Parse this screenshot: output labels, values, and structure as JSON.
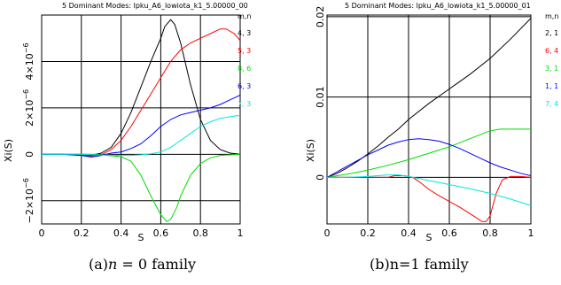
{
  "chart_data": [
    {
      "type": "line",
      "title": "5 Dominant Modes: lpku_A6_lowiota_k1_5.00000_00",
      "xlabel": "S",
      "ylabel": "Xi(S)",
      "xlim": [
        0,
        1
      ],
      "ylim": [
        -3e-06,
        6e-06
      ],
      "x_ticks": [
        0,
        0.2,
        0.4,
        0.6,
        0.8,
        1
      ],
      "x_tick_labels": [
        "0",
        "0.2",
        "0.4",
        "0.6",
        "0.8",
        "1"
      ],
      "y_ticks": [
        -2e-06,
        0,
        2e-06,
        4e-06
      ],
      "grid": true,
      "legend_title": "m,n",
      "legend_position": "right",
      "caption_prefix": "(a)",
      "caption_var": "n",
      "caption_rest": " = 0 family",
      "series": [
        {
          "name": "4, 3",
          "color": "#000000",
          "x": [
            0,
            0.1,
            0.2,
            0.25,
            0.3,
            0.35,
            0.4,
            0.45,
            0.5,
            0.55,
            0.6,
            0.62,
            0.65,
            0.67,
            0.7,
            0.75,
            0.8,
            0.85,
            0.9,
            0.95,
            1.0
          ],
          "y": [
            0,
            0,
            -3e-08,
            -5e-08,
            5e-08,
            3e-07,
            9e-07,
            1.8e-06,
            2.9e-06,
            4e-06,
            5e-06,
            5.5e-06,
            5.8e-06,
            5.6e-06,
            4.8e-06,
            3e-06,
            1.5e-06,
            6e-07,
            2e-07,
            5e-08,
            0
          ]
        },
        {
          "name": "5, 3",
          "color": "#ff0000",
          "x": [
            0,
            0.1,
            0.2,
            0.25,
            0.3,
            0.35,
            0.4,
            0.45,
            0.5,
            0.55,
            0.6,
            0.65,
            0.7,
            0.75,
            0.8,
            0.85,
            0.9,
            0.93,
            0.97,
            1.0
          ],
          "y": [
            0,
            0,
            -5e-08,
            -8e-08,
            -2e-08,
            2e-07,
            6e-07,
            1.2e-06,
            1.9e-06,
            2.6e-06,
            3.3e-06,
            4e-06,
            4.5e-06,
            4.8e-06,
            5e-06,
            5.2e-06,
            5.4e-06,
            5.4e-06,
            5.2e-06,
            4.9e-06
          ]
        },
        {
          "name": "8, 6",
          "color": "#00dd00",
          "x": [
            0,
            0.1,
            0.2,
            0.3,
            0.4,
            0.45,
            0.5,
            0.55,
            0.6,
            0.63,
            0.65,
            0.68,
            0.7,
            0.75,
            0.8,
            0.85,
            0.9,
            1.0
          ],
          "y": [
            0,
            0,
            0,
            -2e-08,
            -1e-07,
            -3e-07,
            -9e-07,
            -1.8e-06,
            -2.6e-06,
            -2.9e-06,
            -2.8e-06,
            -2.3e-06,
            -1.8e-06,
            -9e-07,
            -4e-07,
            -1.5e-07,
            -5e-08,
            0
          ]
        },
        {
          "name": "6, 3",
          "color": "#0000ff",
          "x": [
            0,
            0.1,
            0.2,
            0.25,
            0.3,
            0.35,
            0.4,
            0.45,
            0.5,
            0.55,
            0.6,
            0.65,
            0.7,
            0.75,
            0.8,
            0.85,
            0.9,
            0.95,
            1.0
          ],
          "y": [
            0,
            0,
            -5e-08,
            -1.2e-07,
            -5e-08,
            5e-08,
            1e-07,
            2.5e-07,
            4.5e-07,
            8e-07,
            1.2e-06,
            1.5e-06,
            1.7e-06,
            1.8e-06,
            1.9e-06,
            2e-06,
            2.15e-06,
            2.35e-06,
            2.55e-06
          ]
        },
        {
          "name": "7, 3",
          "color": "#00e5e5",
          "x": [
            0,
            0.1,
            0.2,
            0.3,
            0.4,
            0.45,
            0.5,
            0.55,
            0.6,
            0.65,
            0.7,
            0.75,
            0.8,
            0.85,
            0.9,
            0.95,
            1.0
          ],
          "y": [
            0,
            0,
            0,
            -3e-08,
            -5e-08,
            -5e-08,
            -2e-08,
            2e-08,
            1e-07,
            3e-07,
            6e-07,
            9e-07,
            1.2e-06,
            1.4e-06,
            1.55e-06,
            1.62e-06,
            1.68e-06
          ]
        }
      ]
    },
    {
      "type": "line",
      "title": "5 Dominant Modes: lpku_A6_lowiota_k1_5.00000_01",
      "xlabel": "S",
      "ylabel": "Xi(S)",
      "xlim": [
        0,
        1
      ],
      "ylim": [
        -0.0058,
        0.0202
      ],
      "x_ticks": [
        0,
        0.2,
        0.4,
        0.6,
        0.8,
        1
      ],
      "x_tick_labels": [
        "0",
        "0.2",
        "0.4",
        "0.6",
        "0.8",
        "1"
      ],
      "y_ticks": [
        0,
        0.01,
        0.02
      ],
      "y_tick_labels": [
        "0",
        "0.01",
        "0.02"
      ],
      "grid": true,
      "legend_title": "m,n",
      "legend_position": "right",
      "caption_prefix": "(b)",
      "caption_var": "",
      "caption_rest": "n=1 family",
      "series": [
        {
          "name": "2, 1",
          "color": "#000000",
          "x": [
            0,
            0.05,
            0.1,
            0.15,
            0.2,
            0.25,
            0.3,
            0.35,
            0.4,
            0.5,
            0.6,
            0.7,
            0.8,
            0.9,
            1.0
          ],
          "y": [
            0,
            0.0005,
            0.0012,
            0.002,
            0.0029,
            0.0039,
            0.005,
            0.006,
            0.0072,
            0.0092,
            0.011,
            0.0128,
            0.0148,
            0.0172,
            0.0198
          ]
        },
        {
          "name": "6, 4",
          "color": "#ff0000",
          "x": [
            0,
            0.3,
            0.33,
            0.38,
            0.42,
            0.45,
            0.5,
            0.55,
            0.6,
            0.65,
            0.7,
            0.73,
            0.76,
            0.78,
            0.8,
            0.83,
            0.86,
            0.9,
            0.95,
            1.0
          ],
          "y": [
            0,
            0,
            0.0002,
            0.0002,
            0,
            -0.0005,
            -0.0015,
            -0.0023,
            -0.003,
            -0.0037,
            -0.0045,
            -0.005,
            -0.0055,
            -0.0055,
            -0.0048,
            -0.002,
            -0.0003,
            0.0001,
            0.0001,
            0
          ]
        },
        {
          "name": "3, 1",
          "color": "#00dd00",
          "x": [
            0,
            0.1,
            0.2,
            0.3,
            0.4,
            0.5,
            0.6,
            0.7,
            0.8,
            0.85,
            0.9,
            1.0
          ],
          "y": [
            0,
            0.0004,
            0.0009,
            0.0015,
            0.0022,
            0.003,
            0.0038,
            0.0048,
            0.0058,
            0.006,
            0.006,
            0.006
          ]
        },
        {
          "name": "1, 1",
          "color": "#0000ff",
          "x": [
            0,
            0.05,
            0.1,
            0.15,
            0.2,
            0.25,
            0.3,
            0.35,
            0.4,
            0.45,
            0.5,
            0.55,
            0.6,
            0.65,
            0.7,
            0.75,
            0.8,
            0.85,
            0.9,
            0.95,
            1.0
          ],
          "y": [
            0,
            0.0007,
            0.0014,
            0.0021,
            0.0028,
            0.0034,
            0.004,
            0.0044,
            0.0047,
            0.0048,
            0.0047,
            0.0045,
            0.0041,
            0.0036,
            0.003,
            0.0024,
            0.0018,
            0.0013,
            0.0009,
            0.0005,
            0.0002
          ]
        },
        {
          "name": "7, 4",
          "color": "#00e5e5",
          "x": [
            0,
            0.1,
            0.2,
            0.3,
            0.35,
            0.4,
            0.5,
            0.6,
            0.7,
            0.8,
            0.9,
            1.0
          ],
          "y": [
            0,
            0,
            0.0001,
            0.0003,
            0.0003,
            0.0001,
            -0.0004,
            -0.0009,
            -0.0014,
            -0.002,
            -0.0027,
            -0.0035
          ]
        }
      ]
    }
  ]
}
